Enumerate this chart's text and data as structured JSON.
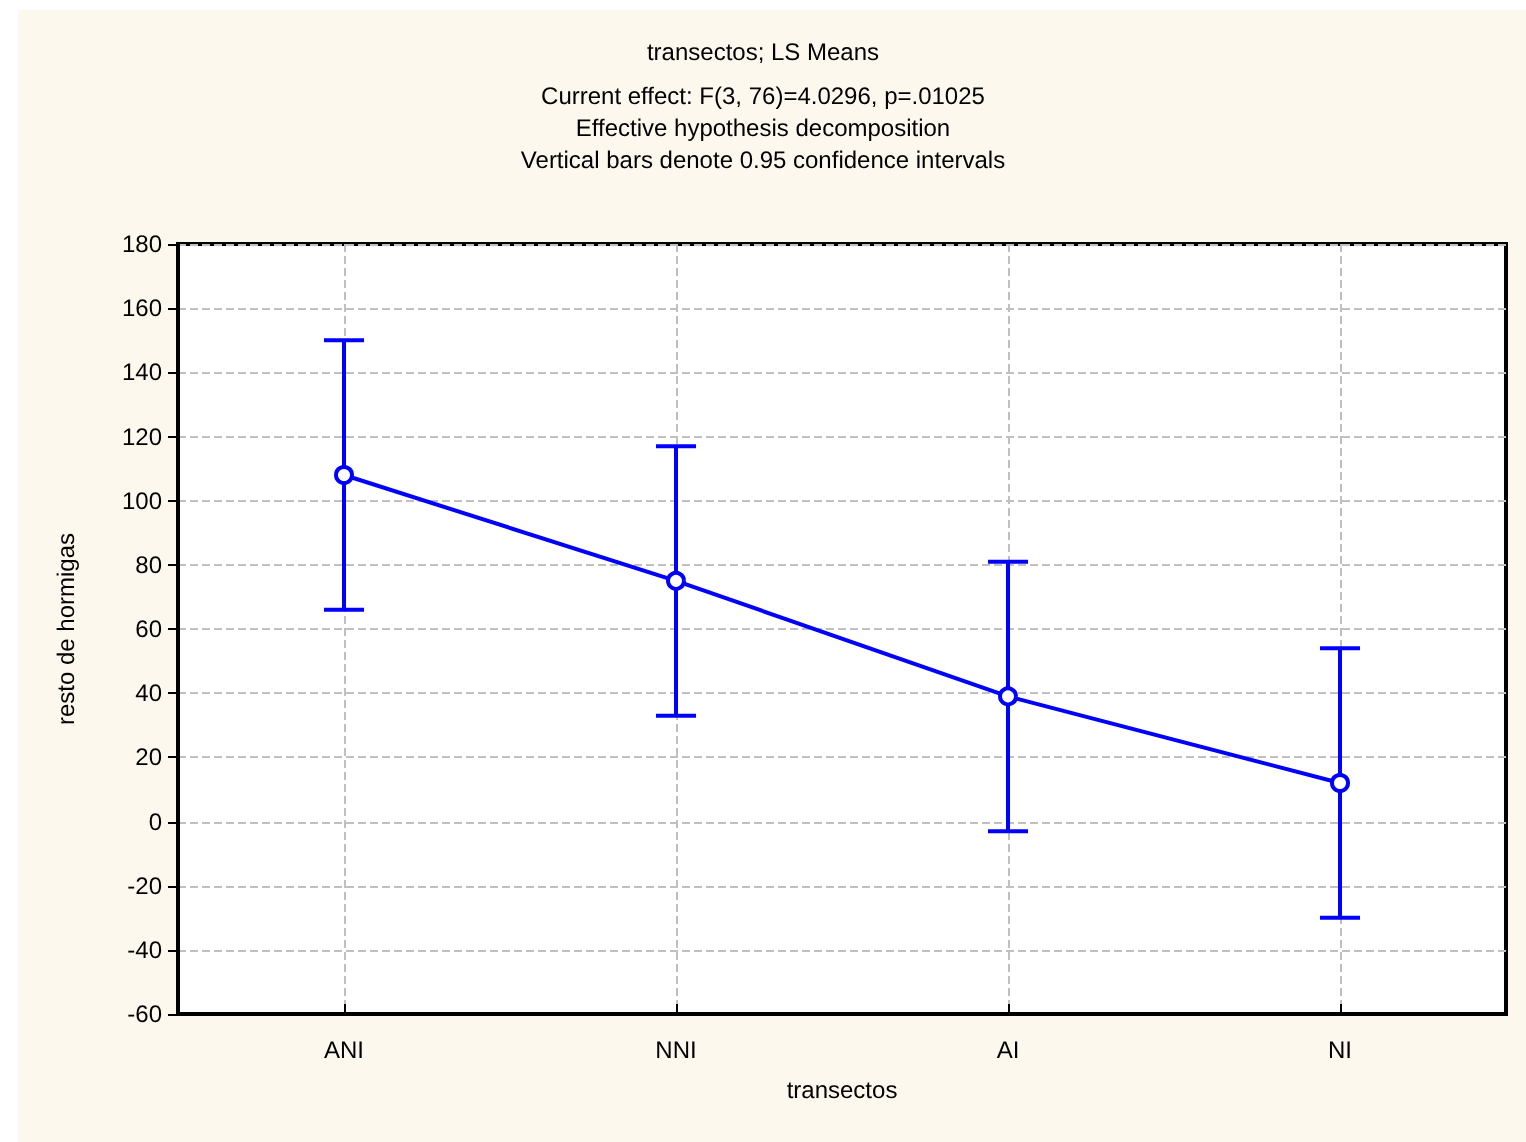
{
  "chart_data": {
    "type": "line",
    "title": "transectos; LS Means",
    "subtitle": "Current effect: F(3, 76)=4.0296, p=.01025\nEffective hypothesis decomposition\nVertical bars denote 0.95 confidence intervals",
    "xlabel": "transectos",
    "ylabel": "resto de hormigas",
    "categories": [
      "ANI",
      "NNI",
      "AI",
      "NI"
    ],
    "series": [
      {
        "color": "#0000ff",
        "values": [
          108,
          75,
          39,
          12
        ],
        "errors": [
          42,
          42,
          42,
          42
        ]
      }
    ],
    "ylim": [
      -60,
      180
    ],
    "yticks": [
      -60,
      -40,
      -20,
      0,
      20,
      40,
      60,
      80,
      100,
      120,
      140,
      160,
      180
    ],
    "grid": true,
    "marker": "circle",
    "line_style": "solid"
  }
}
